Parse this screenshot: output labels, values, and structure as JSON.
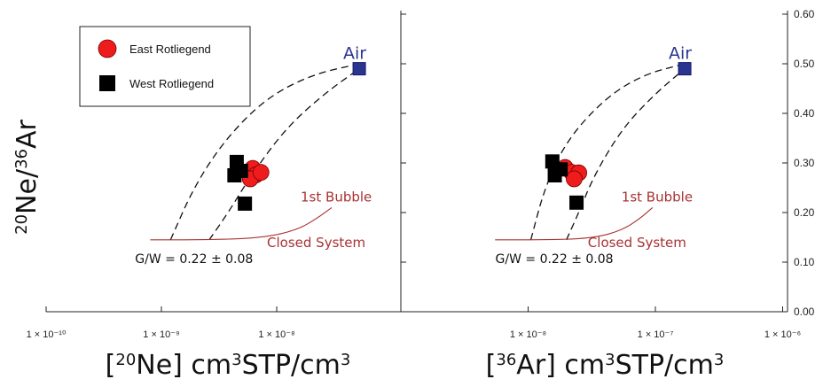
{
  "chart_data": [
    {
      "type": "scatter",
      "xscale": "log",
      "xlim": [
        1e-10,
        1e-07
      ],
      "ylim": [
        0,
        0.6
      ],
      "xticks": [
        {
          "value": 1e-10,
          "label": "1 × 10⁻¹⁰"
        },
        {
          "value": 1e-09,
          "label": "1 × 10⁻⁹"
        },
        {
          "value": 1e-08,
          "label": "1 × 10⁻⁸"
        }
      ],
      "xlabel": {
        "pre": "[",
        "sup1": "20",
        "mid": "Ne] cm",
        "sup2": "3",
        "post": "STP/cm",
        "sup3": "3"
      },
      "ylabel": {
        "sup1": "20",
        "mid": "Ne/",
        "sup2": "36",
        "post": "Ar"
      },
      "series": [
        {
          "name": "East Rotliegend",
          "marker": "circle",
          "color": "#ee1c1c",
          "points": [
            [
              6.2e-09,
              0.289
            ],
            [
              6.6e-09,
              0.276
            ],
            [
              5.9e-09,
              0.268
            ],
            [
              7.3e-09,
              0.281
            ]
          ]
        },
        {
          "name": "West Rotliegend",
          "marker": "square",
          "color": "#000000",
          "points": [
            [
              4.5e-09,
              0.302
            ],
            [
              4.3e-09,
              0.275
            ],
            [
              4.9e-09,
              0.284
            ],
            [
              5.3e-09,
              0.218
            ]
          ]
        },
        {
          "name": "Air",
          "marker": "square",
          "color": "#2a3590",
          "points": [
            [
              5.2e-08,
              0.49
            ]
          ]
        }
      ],
      "curves": [
        {
          "style": "dashed",
          "color": "#111111",
          "points": [
            [
              1.2e-09,
              0.145
            ],
            [
              1.9e-09,
              0.25
            ],
            [
              3.5e-09,
              0.345
            ],
            [
              8e-09,
              0.43
            ],
            [
              2e-08,
              0.478
            ],
            [
              5.2e-08,
              0.5
            ]
          ]
        },
        {
          "style": "dashed",
          "color": "#111111",
          "points": [
            [
              2.6e-09,
              0.145
            ],
            [
              3.8e-09,
              0.2
            ],
            [
              6e-09,
              0.275
            ],
            [
              1.2e-08,
              0.37
            ],
            [
              2.6e-08,
              0.44
            ],
            [
              5.2e-08,
              0.49
            ]
          ]
        },
        {
          "style": "solid",
          "color": "#a83232",
          "points": [
            [
              8e-10,
              0.145
            ],
            [
              3e-09,
              0.145
            ],
            [
              8e-09,
              0.15
            ],
            [
              1.5e-08,
              0.165
            ],
            [
              2.2e-08,
              0.187
            ],
            [
              3e-08,
              0.21
            ]
          ]
        }
      ],
      "annotations": {
        "air": "Air",
        "first_bubble": "1st Bubble",
        "closed_system": "Closed System",
        "gw": "G/W = 0.22 ± 0.08"
      },
      "legend": {
        "placement": "top-left",
        "entries": [
          "East Rotliegend",
          "West Rotliegend"
        ]
      }
    },
    {
      "type": "scatter",
      "xscale": "log",
      "xlim": [
        1e-09,
        1e-06
      ],
      "ylim": [
        0,
        0.6
      ],
      "xticks": [
        {
          "value": 1e-08,
          "label": "1 × 10⁻⁸"
        },
        {
          "value": 1e-07,
          "label": "1 × 10⁻⁷"
        },
        {
          "value": 1e-06,
          "label": "1 × 10⁻⁶"
        }
      ],
      "yticks": [
        {
          "value": 0.0,
          "label": "0.00"
        },
        {
          "value": 0.1,
          "label": "0.10"
        },
        {
          "value": 0.2,
          "label": "0.20"
        },
        {
          "value": 0.3,
          "label": "0.30"
        },
        {
          "value": 0.4,
          "label": "0.40"
        },
        {
          "value": 0.5,
          "label": "0.50"
        },
        {
          "value": 0.6,
          "label": "0.60"
        }
      ],
      "xlabel": {
        "pre": "[",
        "sup1": "36",
        "mid": "Ar] cm",
        "sup2": "3",
        "post": "STP/cm",
        "sup3": "3"
      },
      "series": [
        {
          "name": "East Rotliegend",
          "marker": "circle",
          "color": "#ee1c1c",
          "points": [
            [
              1.95e-08,
              0.291
            ],
            [
              2.2e-08,
              0.281
            ],
            [
              2.5e-08,
              0.28
            ],
            [
              2.3e-08,
              0.268
            ]
          ]
        },
        {
          "name": "West Rotliegend",
          "marker": "square",
          "color": "#000000",
          "points": [
            [
              1.55e-08,
              0.303
            ],
            [
              1.62e-08,
              0.275
            ],
            [
              1.8e-08,
              0.287
            ],
            [
              2.4e-08,
              0.22
            ]
          ]
        },
        {
          "name": "Air",
          "marker": "square",
          "color": "#2a3590",
          "points": [
            [
              1.7e-07,
              0.49
            ]
          ]
        }
      ],
      "curves": [
        {
          "style": "dashed",
          "color": "#111111",
          "points": [
            [
              1.05e-08,
              0.145
            ],
            [
              1.35e-08,
              0.25
            ],
            [
              2e-08,
              0.345
            ],
            [
              4e-08,
              0.43
            ],
            [
              8e-08,
              0.478
            ],
            [
              1.7e-07,
              0.5
            ]
          ]
        },
        {
          "style": "dashed",
          "color": "#111111",
          "points": [
            [
              2e-08,
              0.145
            ],
            [
              2.5e-08,
              0.2
            ],
            [
              3.3e-08,
              0.275
            ],
            [
              5.5e-08,
              0.37
            ],
            [
              1e-07,
              0.44
            ],
            [
              1.7e-07,
              0.49
            ]
          ]
        },
        {
          "style": "solid",
          "color": "#a83232",
          "points": [
            [
              5.5e-09,
              0.145
            ],
            [
              1.8e-08,
              0.145
            ],
            [
              3.5e-08,
              0.15
            ],
            [
              5.5e-08,
              0.165
            ],
            [
              7.5e-08,
              0.187
            ],
            [
              9.5e-08,
              0.21
            ]
          ]
        }
      ],
      "annotations": {
        "air": "Air",
        "first_bubble": "1st Bubble",
        "closed_system": "Closed System",
        "gw": "G/W = 0.22 ± 0.08"
      }
    }
  ]
}
